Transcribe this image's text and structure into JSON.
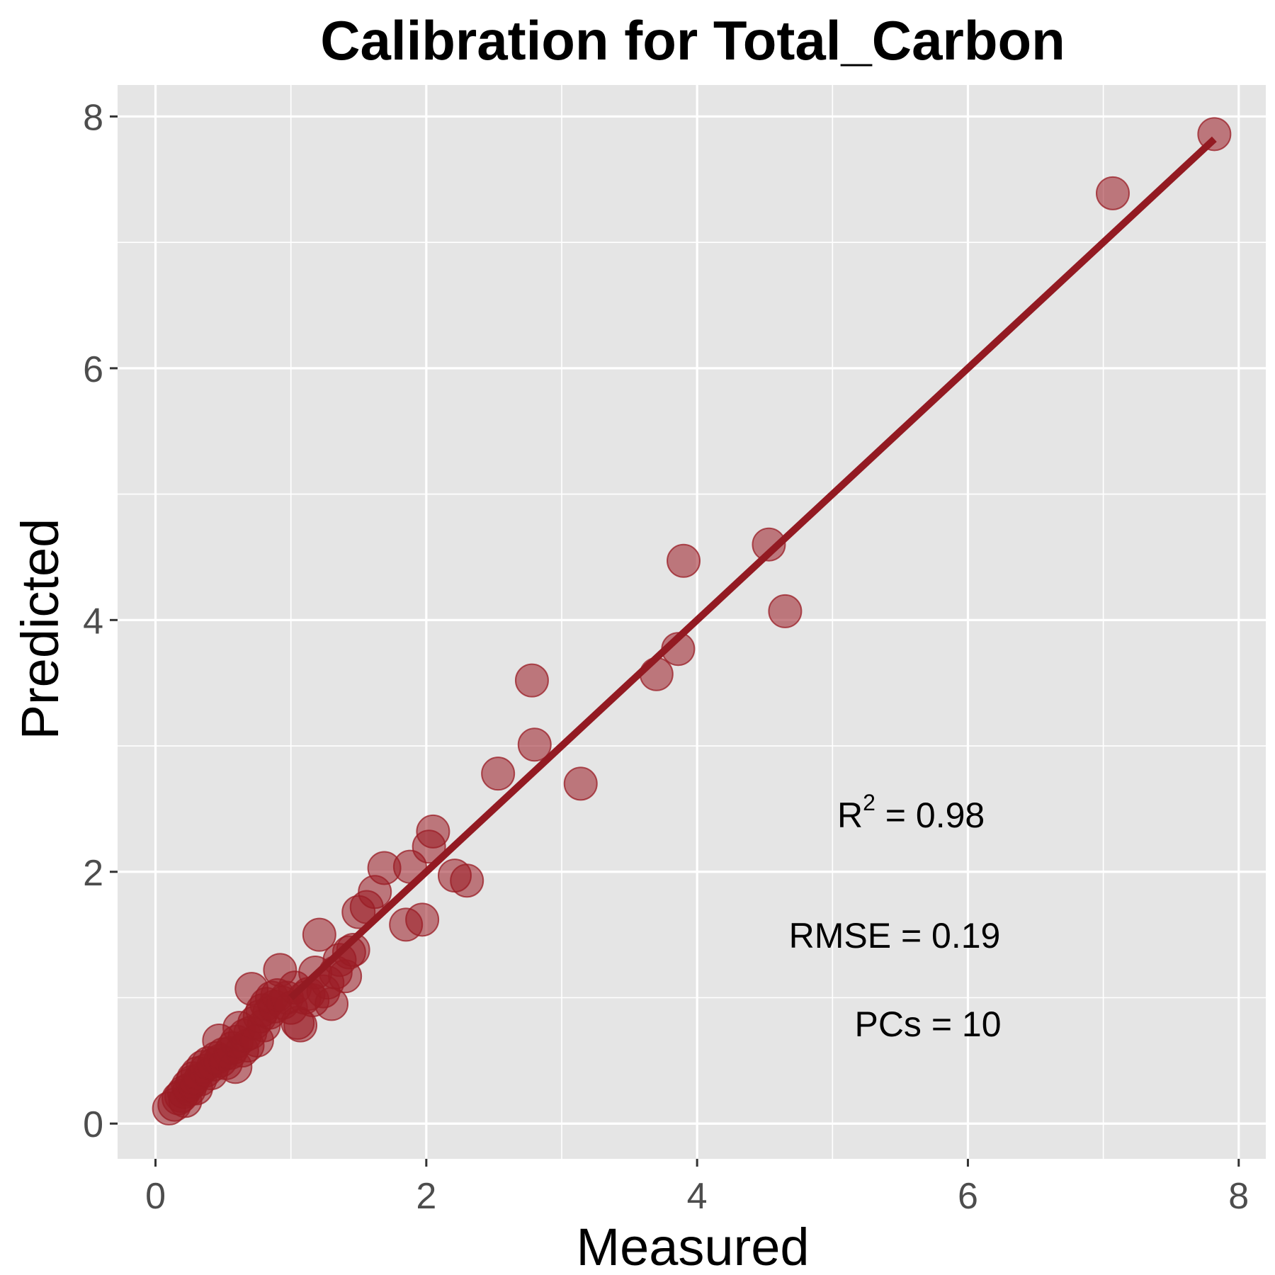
{
  "chart_data": {
    "type": "scatter",
    "title": "Calibration for Total_Carbon",
    "xlabel": "Measured",
    "ylabel": "Predicted",
    "xlim": [
      -0.28,
      8.2
    ],
    "ylim": [
      -0.28,
      8.25
    ],
    "x_ticks": [
      0,
      2,
      4,
      6,
      8
    ],
    "y_ticks": [
      0,
      2,
      4,
      6,
      8
    ],
    "x_tick_labels": [
      "0",
      "2",
      "4",
      "6",
      "8"
    ],
    "y_tick_labels": [
      "0",
      "2",
      "4",
      "6",
      "8"
    ],
    "grid": true,
    "panel_background": "#e5e5e5",
    "point_color": "#9a1c24",
    "line_color": "#931a22",
    "fit_line": {
      "x": [
        1.0,
        7.82
      ],
      "y": [
        1.0,
        7.82
      ]
    },
    "series": [
      {
        "points": [
          [
            0.1,
            0.12
          ],
          [
            0.14,
            0.15
          ],
          [
            0.17,
            0.2
          ],
          [
            0.19,
            0.22
          ],
          [
            0.21,
            0.25
          ],
          [
            0.22,
            0.18
          ],
          [
            0.24,
            0.3
          ],
          [
            0.25,
            0.27
          ],
          [
            0.27,
            0.33
          ],
          [
            0.28,
            0.36
          ],
          [
            0.3,
            0.28
          ],
          [
            0.31,
            0.4
          ],
          [
            0.33,
            0.35
          ],
          [
            0.35,
            0.45
          ],
          [
            0.37,
            0.42
          ],
          [
            0.39,
            0.48
          ],
          [
            0.41,
            0.4
          ],
          [
            0.43,
            0.47
          ],
          [
            0.45,
            0.52
          ],
          [
            0.47,
            0.66
          ],
          [
            0.48,
            0.5
          ],
          [
            0.5,
            0.55
          ],
          [
            0.52,
            0.48
          ],
          [
            0.55,
            0.56
          ],
          [
            0.57,
            0.6
          ],
          [
            0.59,
            0.45
          ],
          [
            0.6,
            0.65
          ],
          [
            0.62,
            0.76
          ],
          [
            0.64,
            0.58
          ],
          [
            0.66,
            0.7
          ],
          [
            0.68,
            0.62
          ],
          [
            0.7,
            0.72
          ],
          [
            0.71,
            1.07
          ],
          [
            0.73,
            0.8
          ],
          [
            0.75,
            0.66
          ],
          [
            0.77,
            0.85
          ],
          [
            0.79,
            0.9
          ],
          [
            0.8,
            0.78
          ],
          [
            0.82,
            0.95
          ],
          [
            0.84,
            0.88
          ],
          [
            0.86,
            1.0
          ],
          [
            0.88,
            0.93
          ],
          [
            0.9,
            1.02
          ],
          [
            0.92,
            1.22
          ],
          [
            0.94,
            0.96
          ],
          [
            0.97,
            1.0
          ],
          [
            1.0,
            0.92
          ],
          [
            1.03,
            1.08
          ],
          [
            1.05,
            0.8
          ],
          [
            1.07,
            0.78
          ],
          [
            1.1,
            1.0
          ],
          [
            1.13,
            1.03
          ],
          [
            1.16,
            0.98
          ],
          [
            1.18,
            1.2
          ],
          [
            1.21,
            1.5
          ],
          [
            1.24,
            1.05
          ],
          [
            1.27,
            1.12
          ],
          [
            1.3,
            0.95
          ],
          [
            1.33,
            1.2
          ],
          [
            1.36,
            1.3
          ],
          [
            1.4,
            1.17
          ],
          [
            1.43,
            1.36
          ],
          [
            1.46,
            1.38
          ],
          [
            1.5,
            1.68
          ],
          [
            1.56,
            1.72
          ],
          [
            1.62,
            1.84
          ],
          [
            1.69,
            2.03
          ],
          [
            1.85,
            1.58
          ],
          [
            1.88,
            2.04
          ],
          [
            1.97,
            1.62
          ],
          [
            2.02,
            2.2
          ],
          [
            2.05,
            2.32
          ],
          [
            2.21,
            1.97
          ],
          [
            2.3,
            1.93
          ],
          [
            2.53,
            2.78
          ],
          [
            2.78,
            3.52
          ],
          [
            2.8,
            3.01
          ],
          [
            3.14,
            2.7
          ],
          [
            3.7,
            3.57
          ],
          [
            3.86,
            3.77
          ],
          [
            3.9,
            4.47
          ],
          [
            4.53,
            4.6
          ],
          [
            4.65,
            4.07
          ],
          [
            7.07,
            7.39
          ],
          [
            7.82,
            7.86
          ]
        ]
      }
    ],
    "annotations": {
      "r2_label": "R",
      "r2_sup": "2",
      "r2_value": " = 0.98",
      "rmse": "RMSE = 0.19",
      "pcs": "PCs = 10"
    }
  }
}
